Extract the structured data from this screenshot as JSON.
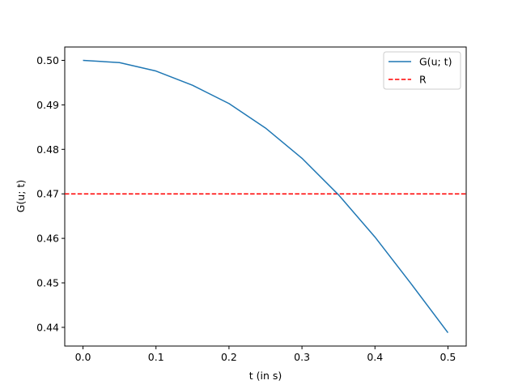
{
  "chart_data": {
    "type": "line",
    "title": "",
    "xlabel": "t (in s)",
    "ylabel": "G(u; t)",
    "xlim": [
      -0.025,
      0.525
    ],
    "ylim": [
      0.4358,
      0.503
    ],
    "xticks": [
      0.0,
      0.1,
      0.2,
      0.3,
      0.4,
      0.5
    ],
    "xtick_labels": [
      "0.0",
      "0.1",
      "0.2",
      "0.3",
      "0.4",
      "0.5"
    ],
    "yticks": [
      0.44,
      0.45,
      0.46,
      0.47,
      0.48,
      0.49,
      0.5
    ],
    "ytick_labels": [
      "0.44",
      "0.45",
      "0.46",
      "0.47",
      "0.48",
      "0.49",
      "0.50"
    ],
    "grid": false,
    "legend": "top-right",
    "series": [
      {
        "name": "G(u; t)",
        "style": "solid",
        "color": "#1f77b4",
        "x": [
          0.0,
          0.05,
          0.1,
          0.15,
          0.2,
          0.25,
          0.3,
          0.35,
          0.4,
          0.45,
          0.5
        ],
        "y": [
          0.5,
          0.4995,
          0.4976,
          0.4944,
          0.4903,
          0.4848,
          0.478,
          0.4698,
          0.4603,
          0.4497,
          0.4388
        ]
      },
      {
        "name": "R",
        "style": "dashed",
        "color": "#ff0000",
        "y": 0.47
      }
    ]
  }
}
